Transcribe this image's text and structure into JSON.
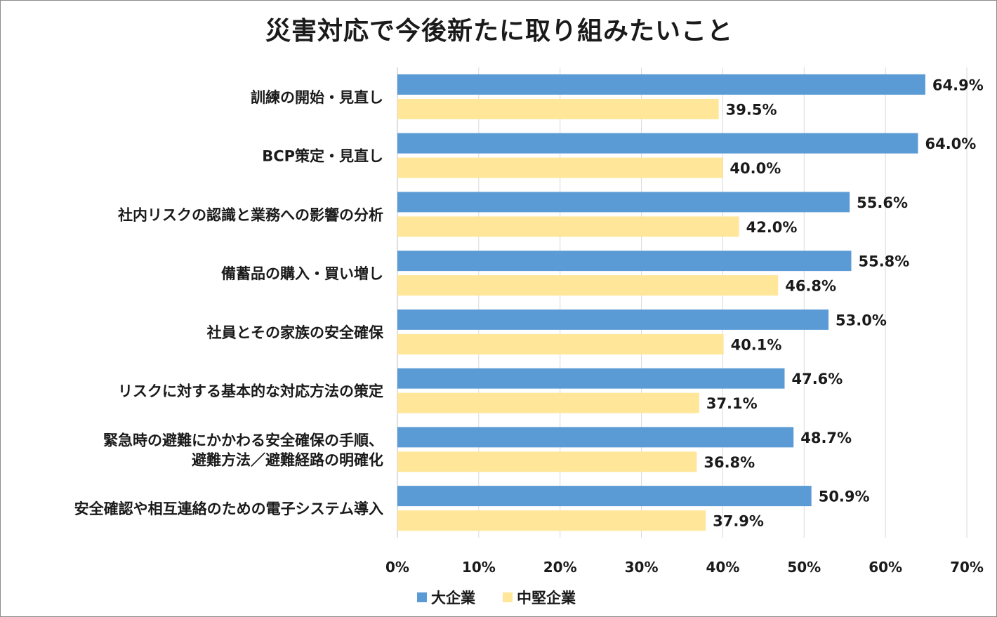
{
  "chart_data": {
    "type": "bar",
    "orientation": "horizontal",
    "title": "災害対応で今後新たに取り組みたいこと",
    "categories": [
      [
        "訓練の開始・見直し"
      ],
      [
        "BCP策定・見直し"
      ],
      [
        "社内リスクの認識と業務への影響の分析"
      ],
      [
        "備蓄品の購入・買い増し"
      ],
      [
        "社員とその家族の安全確保"
      ],
      [
        "リスクに対する基本的な対応方法の策定"
      ],
      [
        "緊急時の避難にかかわる安全確保の手順、",
        "避難方法／避難経路の明確化"
      ],
      [
        "安全確認や相互連絡のための電子システム導入"
      ]
    ],
    "series": [
      {
        "name": "大企業",
        "color": "#5b9bd5",
        "values": [
          64.9,
          64.0,
          55.6,
          55.8,
          53.0,
          47.6,
          48.7,
          50.9
        ]
      },
      {
        "name": "中堅企業",
        "color": "#ffe699",
        "values": [
          39.5,
          40.0,
          42.0,
          46.8,
          40.1,
          37.1,
          36.8,
          37.9
        ]
      }
    ],
    "value_suffix": "%",
    "xlim": [
      0,
      70
    ],
    "xticks": [
      0,
      10,
      20,
      30,
      40,
      50,
      60,
      70
    ],
    "grid": true,
    "legend_position": "bottom"
  }
}
